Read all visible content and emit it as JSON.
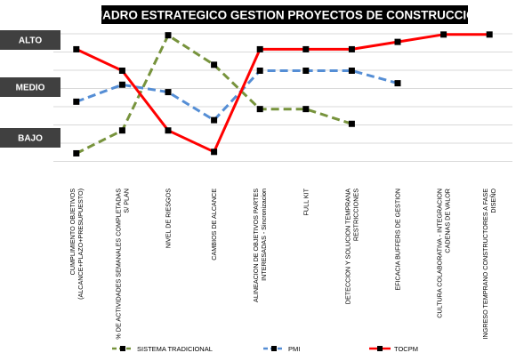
{
  "chart_data": {
    "type": "line",
    "title": "CUADRO ESTRATEGICO  GESTION PROYECTOS DE CONSTRUCCION",
    "y_levels": [
      "ALTO",
      "MEDIO",
      "BAJO"
    ],
    "ylim": [
      0,
      10
    ],
    "grid": true,
    "legend_position": "bottom",
    "categories": [
      [
        "CUMPLIMIENTO OBJETIVOS",
        "(ALCANCE+PLAZO+PRESUPUESTO)"
      ],
      [
        "% DE ACTIVIDADES SEMANALES COMPLETADAS",
        "S/ PLAN"
      ],
      [
        "NIVEL DE RIESGOS"
      ],
      [
        "CAMBIOS DE ALCANCE"
      ],
      [
        "ALINEACION DE OBJETIVOS PARTES",
        "INTERESADAS - Sincronizacion"
      ],
      [
        "FULL KIT"
      ],
      [
        "DETECCION Y SOLUCION TEMPRANA",
        "RESTRICCIONES"
      ],
      [
        "EFICACIA BUFFERS DE GESTION"
      ],
      [
        "CULTURA COLABORATIVA - INTEGRACION",
        "CADENAS DE VALOR"
      ],
      [
        "INGRESO TEMPRANO CONSTRUCTORES A FASE",
        "DISEÑO"
      ]
    ],
    "series": [
      {
        "name": "SISTEMA TRADICIONAL",
        "color": "#77933c",
        "marker_color": "#000000",
        "dash": "dashed",
        "values": [
          1.9,
          3.45,
          9.9,
          7.9,
          4.9,
          4.9,
          3.9,
          null,
          null,
          null
        ]
      },
      {
        "name": "PMI",
        "color": "#558ed5",
        "marker_color": "#000000",
        "dash": "dashed",
        "values": [
          5.4,
          6.55,
          6.05,
          4.15,
          7.5,
          7.5,
          7.5,
          6.65,
          null,
          null
        ]
      },
      {
        "name": "TOCPM",
        "color": "#ff0000",
        "marker_color": "#000000",
        "dash": "solid",
        "values": [
          8.95,
          7.5,
          3.45,
          2.0,
          8.95,
          8.95,
          8.95,
          9.45,
          9.95,
          9.95
        ]
      }
    ]
  }
}
